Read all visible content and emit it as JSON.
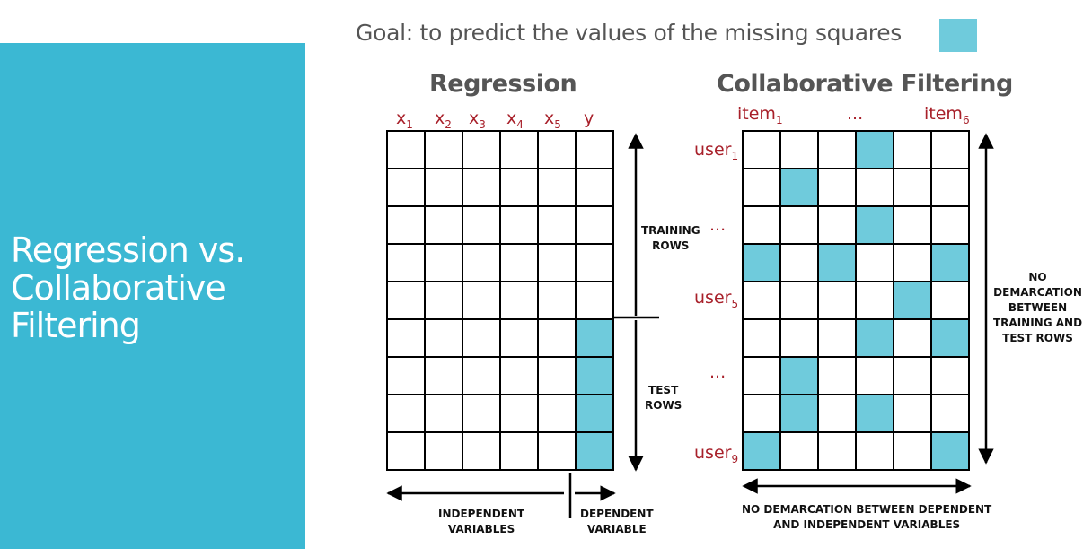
{
  "side_panel": {
    "title_lines": [
      "Regression vs.",
      "Collaborative",
      "Filtering"
    ]
  },
  "goal": {
    "text": "Goal: to predict the values of the missing squares",
    "swatch_color": "#6fcbdc"
  },
  "regression": {
    "title": "Regression",
    "columns": [
      {
        "base": "x",
        "sub": "1"
      },
      {
        "base": "x",
        "sub": "2"
      },
      {
        "base": "x",
        "sub": "3"
      },
      {
        "base": "x",
        "sub": "4"
      },
      {
        "base": "x",
        "sub": "5"
      },
      {
        "base": "y",
        "sub": ""
      }
    ],
    "rows": 9,
    "filled": [
      [
        5,
        5
      ],
      [
        6,
        5
      ],
      [
        7,
        5
      ],
      [
        8,
        5
      ]
    ],
    "training_label": [
      "TRAINING",
      "ROWS"
    ],
    "test_label": [
      "TEST",
      "ROWS"
    ],
    "independent_label": [
      "INDEPENDENT",
      "VARIABLES"
    ],
    "dependent_label": [
      "DEPENDENT",
      "VARIABLE"
    ]
  },
  "collab": {
    "title": "Collaborative Filtering",
    "column_labels": [
      {
        "base": "item",
        "sub": "1"
      },
      {
        "base": "...",
        "sub": ""
      },
      {
        "base": "item",
        "sub": "6"
      }
    ],
    "row_labels": [
      {
        "base": "user",
        "sub": "1"
      },
      {
        "base": "...",
        "sub": ""
      },
      {
        "base": "user",
        "sub": "5"
      },
      {
        "base": "...",
        "sub": ""
      },
      {
        "base": "user",
        "sub": "9"
      }
    ],
    "rows": 9,
    "cols": 6,
    "filled": [
      [
        0,
        3
      ],
      [
        1,
        1
      ],
      [
        2,
        3
      ],
      [
        3,
        0
      ],
      [
        3,
        2
      ],
      [
        3,
        5
      ],
      [
        4,
        4
      ],
      [
        5,
        3
      ],
      [
        5,
        5
      ],
      [
        6,
        1
      ],
      [
        7,
        1
      ],
      [
        7,
        3
      ],
      [
        8,
        0
      ],
      [
        8,
        5
      ]
    ],
    "right_label": [
      "NO",
      "DEMARCATION",
      "BETWEEN",
      "TRAINING AND",
      "TEST ROWS"
    ],
    "bottom_label": [
      "NO DEMARCATION BETWEEN DEPENDENT",
      "AND INDEPENDENT VARIABLES"
    ]
  },
  "colors": {
    "accent": "#3bb8d3",
    "cell_fill": "#6fcbdc",
    "label_red": "#a8202a",
    "heading_gray": "#555555"
  }
}
